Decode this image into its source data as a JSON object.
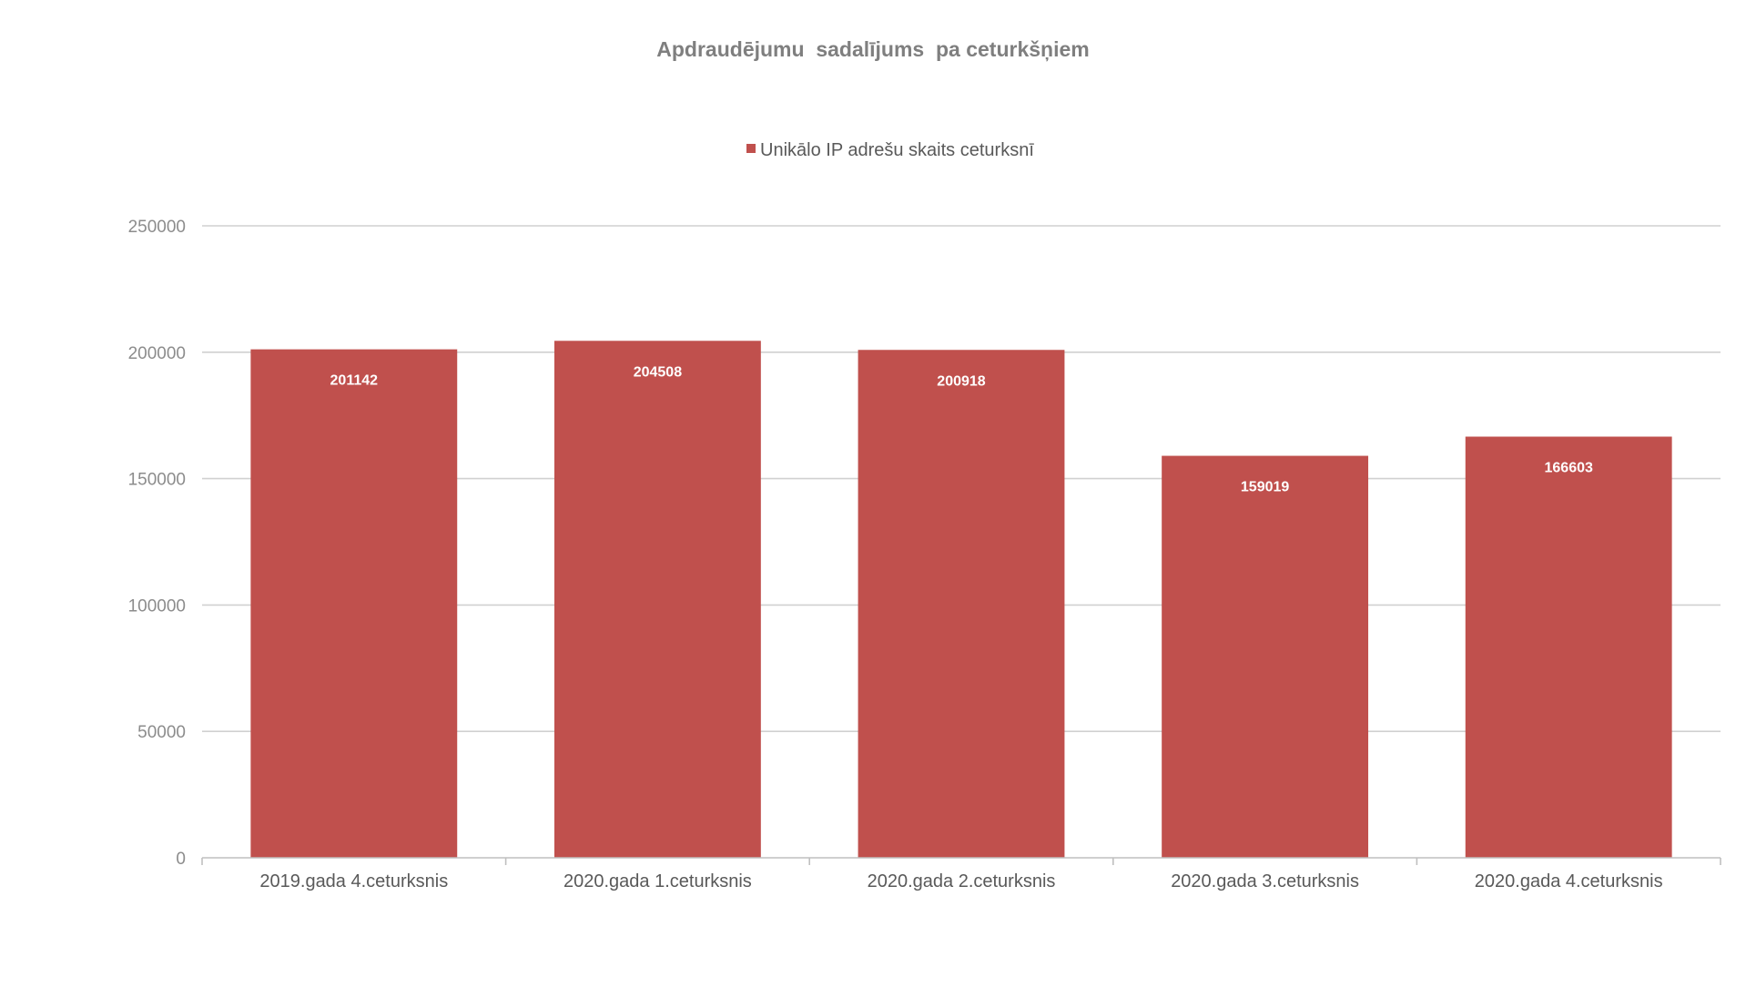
{
  "chart_data": {
    "type": "bar",
    "title": "Apdraudējumu  sadalījums  pa ceturkšņiem",
    "categories": [
      "2019.gada  4.ceturksnis",
      "2020.gada  1.ceturksnis",
      "2020.gada  2.ceturksnis",
      "2020.gada  3.ceturksnis",
      "2020.gada  4.ceturksnis"
    ],
    "series": [
      {
        "name": "Unikālo IP adrešu skaits ceturksnī",
        "values": [
          201142,
          204508,
          200918,
          159019,
          166603
        ],
        "color": "#c0504d"
      }
    ],
    "data_labels": [
      "201142",
      "204508",
      "200918",
      "159019",
      "166603"
    ],
    "ylim": [
      0,
      250000
    ],
    "yticks": [
      0,
      50000,
      100000,
      150000,
      200000,
      250000
    ],
    "ytick_labels": [
      "0",
      "50000",
      "100000",
      "150000",
      "200000",
      "250000"
    ],
    "grid": true,
    "legend_position": "top"
  }
}
